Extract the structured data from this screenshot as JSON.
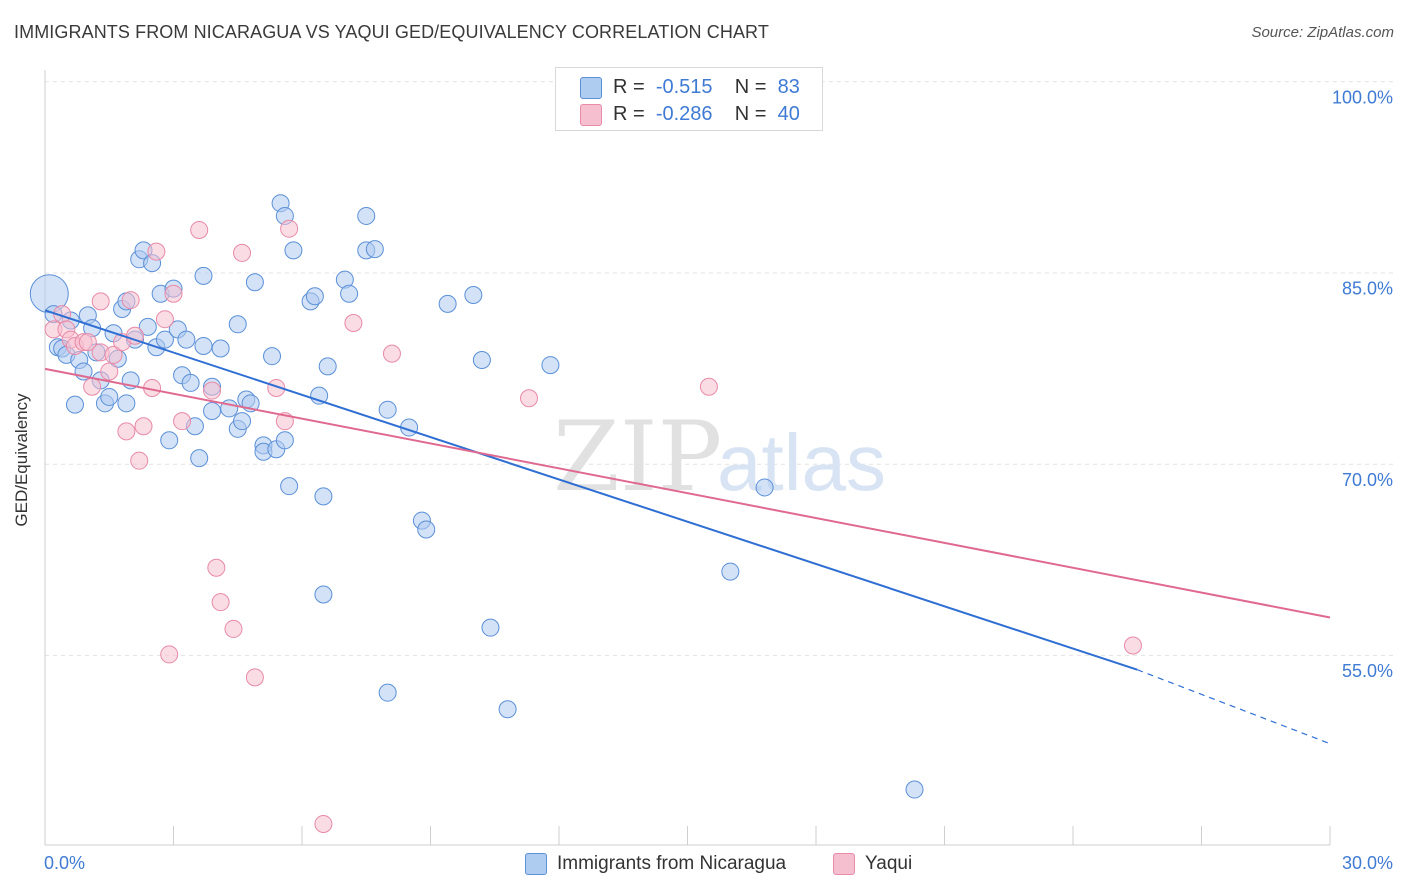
{
  "title": "IMMIGRANTS FROM NICARAGUA VS YAQUI GED/EQUIVALENCY CORRELATION CHART",
  "source": "Source: ZipAtlas.com",
  "watermark": "ZIPatlas",
  "legend": {
    "rows": [
      {
        "r_label": "R =",
        "r_value": "-0.515",
        "n_label": "N =",
        "n_value": "83"
      },
      {
        "r_label": "R =",
        "r_value": "-0.286",
        "n_label": "N =",
        "n_value": "40"
      }
    ]
  },
  "bottom_legend": [
    "Immigrants from Nicaragua",
    "Yaqui"
  ],
  "colors": {
    "blue_fill": "#aecbf0",
    "blue_stroke": "#5b90d8",
    "blue_line": "#2f6fd3",
    "pink_fill": "#f6bfd0",
    "pink_stroke": "#e88aa8",
    "pink_line": "#e0698f",
    "tick_label": "#3f7bd4",
    "grid": "#e3e3e3"
  },
  "chart_data": {
    "type": "scatter",
    "title": "IMMIGRANTS FROM NICARAGUA VS YAQUI GED/EQUIVALENCY CORRELATION CHART",
    "xlabel": "",
    "ylabel": "GED/Equivalency",
    "xlim": [
      0,
      30
    ],
    "ylim": [
      43,
      100
    ],
    "x_tick_labels": [
      "0.0%",
      "30.0%"
    ],
    "y_ticks": [
      55,
      70,
      85,
      100
    ],
    "y_tick_labels": [
      "55.0%",
      "70.0%",
      "85.0%",
      "100.0%"
    ],
    "grid": true,
    "legend_position": "top-center",
    "series": [
      {
        "name": "Immigrants from Nicaragua",
        "r": -0.515,
        "n": 83,
        "trend": {
          "x0": 0,
          "y0": 83.3,
          "x1": 25.5,
          "y1": 55.1,
          "dash_x1": 30,
          "dash_y1": 49.3
        },
        "points": [
          [
            0.1,
            84.6
          ],
          [
            0.2,
            83.0
          ],
          [
            0.3,
            80.4
          ],
          [
            0.4,
            80.3
          ],
          [
            0.5,
            79.8
          ],
          [
            0.6,
            82.5
          ],
          [
            0.7,
            75.9
          ],
          [
            0.8,
            79.4
          ],
          [
            0.9,
            78.5
          ],
          [
            1.0,
            82.9
          ],
          [
            1.1,
            81.9
          ],
          [
            1.2,
            80.0
          ],
          [
            1.3,
            77.8
          ],
          [
            1.4,
            76.0
          ],
          [
            1.5,
            76.5
          ],
          [
            1.6,
            81.5
          ],
          [
            1.7,
            79.5
          ],
          [
            1.8,
            83.4
          ],
          [
            1.9,
            84.0
          ],
          [
            1.9,
            76.0
          ],
          [
            2.0,
            77.8
          ],
          [
            2.1,
            81.0
          ],
          [
            2.2,
            87.3
          ],
          [
            2.3,
            88.0
          ],
          [
            2.4,
            82.0
          ],
          [
            2.5,
            87.0
          ],
          [
            2.6,
            80.4
          ],
          [
            2.7,
            84.6
          ],
          [
            2.8,
            81.0
          ],
          [
            2.9,
            73.1
          ],
          [
            3.0,
            85.0
          ],
          [
            3.1,
            81.8
          ],
          [
            3.2,
            78.2
          ],
          [
            3.3,
            81.0
          ],
          [
            3.4,
            77.6
          ],
          [
            3.5,
            74.2
          ],
          [
            3.6,
            71.7
          ],
          [
            3.7,
            80.5
          ],
          [
            3.7,
            86.0
          ],
          [
            3.9,
            77.3
          ],
          [
            3.9,
            75.4
          ],
          [
            4.1,
            80.3
          ],
          [
            4.3,
            75.6
          ],
          [
            4.5,
            74.0
          ],
          [
            4.5,
            82.2
          ],
          [
            4.6,
            74.6
          ],
          [
            4.7,
            76.3
          ],
          [
            4.8,
            76.0
          ],
          [
            4.9,
            85.5
          ],
          [
            5.1,
            72.7
          ],
          [
            5.1,
            72.2
          ],
          [
            5.3,
            79.7
          ],
          [
            5.4,
            72.4
          ],
          [
            5.5,
            91.7
          ],
          [
            5.6,
            73.1
          ],
          [
            5.6,
            90.7
          ],
          [
            5.7,
            69.5
          ],
          [
            5.8,
            88.0
          ],
          [
            6.2,
            84.0
          ],
          [
            6.3,
            84.4
          ],
          [
            6.4,
            76.6
          ],
          [
            6.5,
            68.7
          ],
          [
            6.6,
            78.9
          ],
          [
            6.5,
            61.0
          ],
          [
            7.0,
            85.7
          ],
          [
            7.1,
            84.6
          ],
          [
            7.5,
            90.7
          ],
          [
            7.5,
            88.0
          ],
          [
            7.7,
            88.1
          ],
          [
            8.0,
            53.3
          ],
          [
            8.0,
            75.5
          ],
          [
            8.5,
            74.1
          ],
          [
            8.8,
            66.8
          ],
          [
            8.9,
            66.1
          ],
          [
            9.4,
            83.8
          ],
          [
            10.0,
            84.5
          ],
          [
            10.2,
            79.4
          ],
          [
            10.4,
            58.4
          ],
          [
            10.8,
            52.0
          ],
          [
            11.8,
            79.0
          ],
          [
            16.0,
            62.8
          ],
          [
            16.8,
            69.4
          ],
          [
            20.3,
            45.7
          ]
        ]
      },
      {
        "name": "Yaqui",
        "r": -0.286,
        "n": 40,
        "trend": {
          "x0": 0,
          "y0": 78.7,
          "x1": 30,
          "y1": 59.2
        },
        "points": [
          [
            0.2,
            81.8
          ],
          [
            0.4,
            83.0
          ],
          [
            0.5,
            81.8
          ],
          [
            0.6,
            81.0
          ],
          [
            0.7,
            80.5
          ],
          [
            0.9,
            80.8
          ],
          [
            1.0,
            80.8
          ],
          [
            1.1,
            77.3
          ],
          [
            1.3,
            80.0
          ],
          [
            1.3,
            84.0
          ],
          [
            1.5,
            78.5
          ],
          [
            1.6,
            79.8
          ],
          [
            1.8,
            80.8
          ],
          [
            1.9,
            73.8
          ],
          [
            2.0,
            84.1
          ],
          [
            2.1,
            81.3
          ],
          [
            2.2,
            71.5
          ],
          [
            2.3,
            74.2
          ],
          [
            2.5,
            77.2
          ],
          [
            2.6,
            87.9
          ],
          [
            2.8,
            82.6
          ],
          [
            2.9,
            56.3
          ],
          [
            3.0,
            84.6
          ],
          [
            3.2,
            74.6
          ],
          [
            3.6,
            89.6
          ],
          [
            3.9,
            77.0
          ],
          [
            4.0,
            63.1
          ],
          [
            4.1,
            60.4
          ],
          [
            4.4,
            58.3
          ],
          [
            4.6,
            87.8
          ],
          [
            4.9,
            54.5
          ],
          [
            5.4,
            77.2
          ],
          [
            5.6,
            74.6
          ],
          [
            5.7,
            89.7
          ],
          [
            6.5,
            43.0
          ],
          [
            7.2,
            82.3
          ],
          [
            8.1,
            79.9
          ],
          [
            11.3,
            76.4
          ],
          [
            15.5,
            77.3
          ],
          [
            25.4,
            57.0
          ]
        ]
      }
    ]
  }
}
